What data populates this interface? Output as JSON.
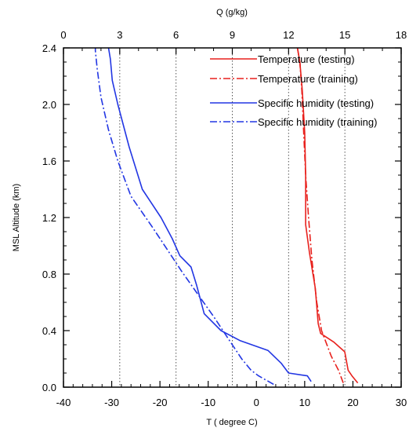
{
  "chart_data": {
    "type": "line",
    "ylabel": "MSL Altitude (km)",
    "xlabel_bottom": "T ( degree C)",
    "xlabel_top": "Q (g/kg)",
    "ylim": [
      0.0,
      2.4
    ],
    "xlim_bottom": [
      -40,
      30
    ],
    "xlim_top": [
      0,
      18
    ],
    "y_ticks": [
      "0.0",
      "0.4",
      "0.8",
      "1.2",
      "1.6",
      "2.0",
      "2.4"
    ],
    "x_ticks_bottom": [
      "-40",
      "-30",
      "-20",
      "-10",
      "0",
      "10",
      "20",
      "30"
    ],
    "x_ticks_top": [
      "0",
      "3",
      "6",
      "9",
      "12",
      "15",
      "18"
    ],
    "gridlines": "dotted vertical lines at top-axis ticks 3, 6, 9, 12, 15",
    "legend_position": "top-right",
    "series": [
      {
        "name": "Temperature (testing)",
        "axis": "bottom",
        "color": "#e8211d",
        "dash": "solid",
        "points": [
          [
            21.0,
            0.03
          ],
          [
            19.8,
            0.08
          ],
          [
            19.0,
            0.12
          ],
          [
            18.3,
            0.25
          ],
          [
            16.0,
            0.32
          ],
          [
            13.3,
            0.38
          ],
          [
            12.8,
            0.45
          ],
          [
            12.2,
            0.7
          ],
          [
            11.0,
            0.95
          ],
          [
            10.2,
            1.15
          ],
          [
            10.2,
            1.5
          ],
          [
            10.0,
            1.8
          ],
          [
            9.5,
            2.1
          ],
          [
            9.0,
            2.3
          ],
          [
            8.5,
            2.4
          ]
        ]
      },
      {
        "name": "Temperature (training)",
        "axis": "bottom",
        "color": "#e8211d",
        "dash": "dashdot",
        "points": [
          [
            18.0,
            0.03
          ],
          [
            17.0,
            0.12
          ],
          [
            15.5,
            0.22
          ],
          [
            13.5,
            0.4
          ],
          [
            12.5,
            0.6
          ],
          [
            11.5,
            0.9
          ],
          [
            10.8,
            1.2
          ],
          [
            10.2,
            1.5
          ],
          [
            9.8,
            1.8
          ],
          [
            9.4,
            2.1
          ],
          [
            9.0,
            2.3
          ],
          [
            8.5,
            2.4
          ]
        ]
      },
      {
        "name": "Specific humidity (testing)",
        "axis": "top",
        "color": "#2236e3",
        "dash": "solid",
        "points": [
          [
            13.2,
            0.04
          ],
          [
            13.0,
            0.08
          ],
          [
            12.0,
            0.1
          ],
          [
            11.6,
            0.17
          ],
          [
            10.9,
            0.26
          ],
          [
            9.4,
            0.33
          ],
          [
            8.4,
            0.4
          ],
          [
            7.5,
            0.52
          ],
          [
            7.1,
            0.72
          ],
          [
            6.8,
            0.85
          ],
          [
            6.2,
            0.93
          ],
          [
            5.8,
            1.05
          ],
          [
            5.2,
            1.2
          ],
          [
            4.2,
            1.4
          ],
          [
            3.5,
            1.7
          ],
          [
            2.9,
            2.0
          ],
          [
            2.6,
            2.17
          ],
          [
            2.5,
            2.32
          ],
          [
            2.4,
            2.4
          ]
        ]
      },
      {
        "name": "Specific humidity (training)",
        "axis": "top",
        "color": "#2236e3",
        "dash": "dashdot",
        "points": [
          [
            11.2,
            0.02
          ],
          [
            10.4,
            0.08
          ],
          [
            10.0,
            0.12
          ],
          [
            9.5,
            0.2
          ],
          [
            8.7,
            0.36
          ],
          [
            8.0,
            0.5
          ],
          [
            7.2,
            0.65
          ],
          [
            6.3,
            0.82
          ],
          [
            5.5,
            0.98
          ],
          [
            4.7,
            1.14
          ],
          [
            3.6,
            1.35
          ],
          [
            2.9,
            1.6
          ],
          [
            2.4,
            1.82
          ],
          [
            2.0,
            2.05
          ],
          [
            1.8,
            2.25
          ],
          [
            1.7,
            2.38
          ],
          [
            1.7,
            2.4
          ]
        ]
      }
    ]
  }
}
